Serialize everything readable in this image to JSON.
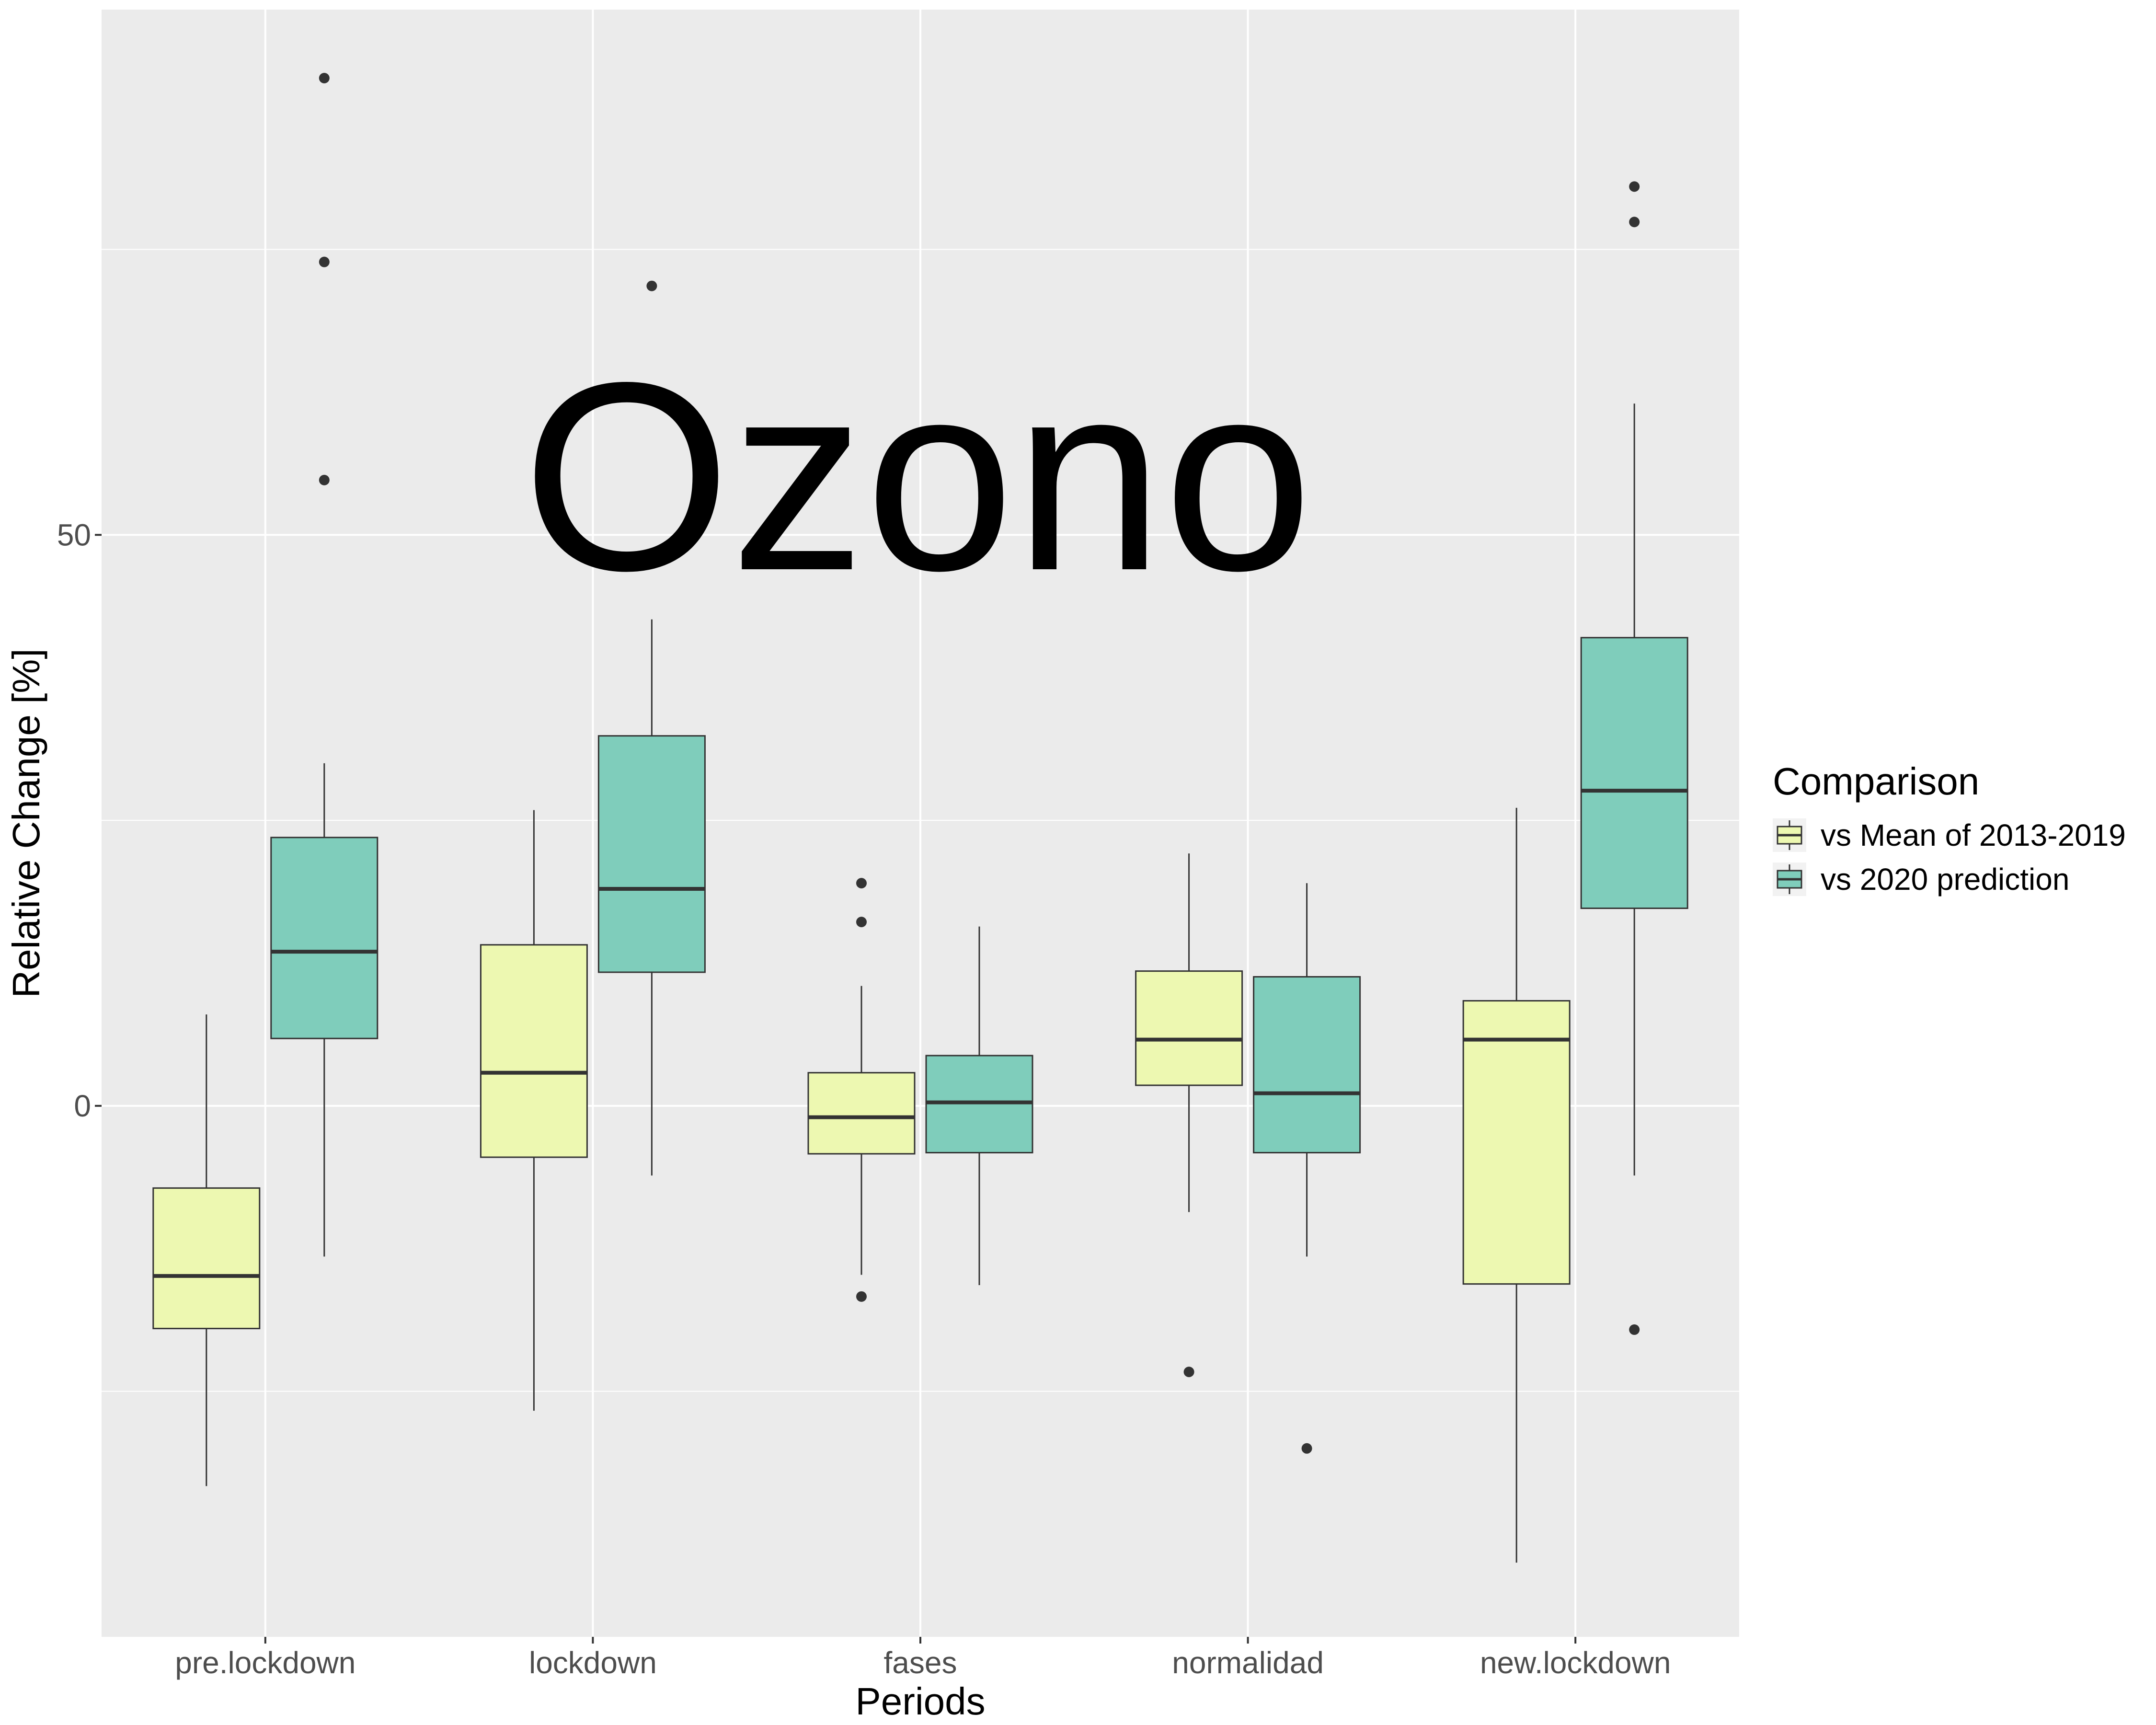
{
  "chart_data": {
    "type": "box",
    "title": "Ozono",
    "xlabel": "Periods",
    "ylabel": "Relative Change [%]",
    "ylim": [
      -46.5,
      96
    ],
    "y_ticks": [
      0,
      50
    ],
    "y_tick_labels": [
      "0",
      "50"
    ],
    "grid": true,
    "categories": [
      "pre.lockdown",
      "lockdown",
      "fases",
      "normalidad",
      "new.lockdown"
    ],
    "legend": {
      "title": "Comparison",
      "position": "right"
    },
    "series": [
      {
        "name": "vs Mean of 2013-2019",
        "color": "#EDF8B1",
        "boxes": [
          {
            "min": -33.3,
            "q1": -19.5,
            "median": -14.9,
            "q3": -7.2,
            "max": 8.0,
            "outliers": []
          },
          {
            "min": -26.7,
            "q1": -4.5,
            "median": 2.9,
            "q3": 14.1,
            "max": 25.9,
            "outliers": []
          },
          {
            "min": -14.8,
            "q1": -4.2,
            "median": -1.0,
            "q3": 2.9,
            "max": 10.5,
            "outliers": [
              19.5,
              16.1,
              -16.7
            ]
          },
          {
            "min": -9.3,
            "q1": 1.8,
            "median": 5.8,
            "q3": 11.8,
            "max": 22.1,
            "outliers": [
              -23.3
            ]
          },
          {
            "min": -40.0,
            "q1": -15.6,
            "median": 5.8,
            "q3": 9.2,
            "max": 26.1,
            "outliers": []
          }
        ]
      },
      {
        "name": "vs 2020 prediction",
        "color": "#7FCDBB",
        "boxes": [
          {
            "min": -13.2,
            "q1": 5.9,
            "median": 13.5,
            "q3": 23.5,
            "max": 30.0,
            "outliers": [
              90.0,
              73.9,
              54.8
            ]
          },
          {
            "min": -6.1,
            "q1": 11.7,
            "median": 19.0,
            "q3": 32.4,
            "max": 42.6,
            "outliers": [
              71.8
            ]
          },
          {
            "min": -15.7,
            "q1": -4.1,
            "median": 0.3,
            "q3": 4.4,
            "max": 15.7,
            "outliers": []
          },
          {
            "min": -13.2,
            "q1": -4.1,
            "median": 1.1,
            "q3": 11.3,
            "max": 19.5,
            "outliers": [
              -30.0
            ]
          },
          {
            "min": -6.1,
            "q1": 17.3,
            "median": 27.6,
            "q3": 41.0,
            "max": 61.5,
            "outliers": [
              80.5,
              77.4,
              -19.6
            ]
          }
        ]
      }
    ]
  }
}
